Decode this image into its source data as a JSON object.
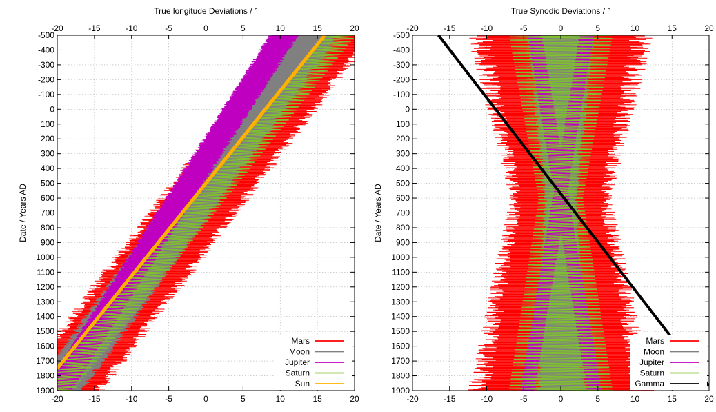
{
  "chart_data": [
    {
      "type": "line",
      "title": "",
      "xlabel": "True longitude Deviations / °",
      "ylabel": "Date / Years AD",
      "xlim": [
        -20,
        20
      ],
      "ylim": [
        -500,
        1900
      ],
      "y_inverted": true,
      "grid": true,
      "legend_position": "bottom-right",
      "x_ticks": [
        -20,
        -15,
        -10,
        -5,
        0,
        5,
        10,
        15,
        20
      ],
      "y_ticks": [
        -500,
        -400,
        -300,
        -200,
        -100,
        0,
        100,
        200,
        300,
        400,
        500,
        600,
        700,
        800,
        900,
        1000,
        1100,
        1200,
        1300,
        1400,
        1500,
        1600,
        1700,
        1800,
        1900
      ],
      "series": [
        {
          "name": "Mars",
          "color": "#ff0000",
          "style": "oscillating band",
          "center": [
            {
              "y": -500,
              "x": 16.5
            },
            {
              "y": 1900,
              "x": -20
            }
          ],
          "half_width": 5.5
        },
        {
          "name": "Moon",
          "color": "#808080",
          "style": "band",
          "center": [
            {
              "y": -500,
              "x": 14.5
            },
            {
              "y": 1900,
              "x": -20
            }
          ],
          "half_width": 3.2
        },
        {
          "name": "Jupiter",
          "color": "#c000c0",
          "style": "band",
          "center": [
            {
              "y": -500,
              "x": 10.5
            },
            {
              "y": 1900,
              "x": -20
            }
          ],
          "half_width": 1.8
        },
        {
          "name": "Saturn",
          "color": "#80c030",
          "style": "zigzag",
          "center": [
            {
              "y": -500,
              "x": 18
            },
            {
              "y": 1900,
              "x": -20
            }
          ],
          "half_width": 2.2
        },
        {
          "name": "Sun",
          "color": "#ffb000",
          "style": "line",
          "points": [
            {
              "y": -500,
              "x": 16
            },
            {
              "y": 1750,
              "x": -20
            }
          ]
        }
      ]
    },
    {
      "type": "line",
      "title": "",
      "xlabel": "True Synodic Deviations / °",
      "ylabel": "Date / Years AD",
      "xlim": [
        -20,
        20
      ],
      "ylim": [
        -500,
        1900
      ],
      "y_inverted": true,
      "grid": true,
      "legend_position": "bottom-right",
      "x_ticks": [
        -20,
        -15,
        -10,
        -5,
        0,
        5,
        10,
        15,
        20
      ],
      "y_ticks": [
        -500,
        -400,
        -300,
        -200,
        -100,
        0,
        100,
        200,
        300,
        400,
        500,
        600,
        700,
        800,
        900,
        1000,
        1100,
        1200,
        1300,
        1400,
        1500,
        1600,
        1700,
        1800,
        1900
      ],
      "series": [
        {
          "name": "Mars",
          "color": "#ff0000",
          "style": "oscillating band",
          "half_width_at_top": 11,
          "half_width_at_min": 6,
          "half_width_at_bottom": 11
        },
        {
          "name": "Moon",
          "color": "#808080",
          "style": "band",
          "half_width_at_top": 4,
          "half_width_at_min": 2,
          "half_width_at_bottom": 3
        },
        {
          "name": "Jupiter",
          "color": "#c000c0",
          "style": "crossing bands",
          "left_band": [
            {
              "y": -500,
              "x": -3.5
            },
            {
              "y": 1900,
              "x": 4.5
            }
          ],
          "right_band": [
            {
              "y": -500,
              "x": 3.5
            },
            {
              "y": 1900,
              "x": -4.5
            }
          ]
        },
        {
          "name": "Saturn",
          "color": "#80c030",
          "style": "zigzag",
          "half_width_at_top": 7,
          "half_width_at_min": 3,
          "half_width_at_bottom": 7
        },
        {
          "name": "Gamma",
          "color": "#000000",
          "style": "line",
          "points": [
            {
              "y": -500,
              "x": -16.5
            },
            {
              "y": 1870,
              "x": 20
            }
          ]
        }
      ]
    }
  ]
}
